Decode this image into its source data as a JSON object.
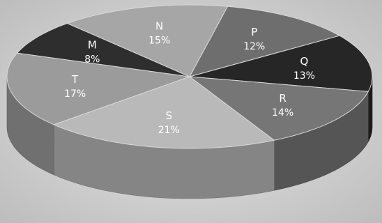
{
  "chart_data": {
    "type": "pie",
    "style": "3d",
    "slices": [
      {
        "label": "P",
        "value": 12,
        "value_text": "12%",
        "color": "#6e6e6e"
      },
      {
        "label": "Q",
        "value": 13,
        "value_text": "13%",
        "color": "#262626"
      },
      {
        "label": "R",
        "value": 14,
        "value_text": "14%",
        "color": "#767676"
      },
      {
        "label": "S",
        "value": 21,
        "value_text": "21%",
        "color": "#b9b9b9"
      },
      {
        "label": "T",
        "value": 17,
        "value_text": "17%",
        "color": "#9b9b9b"
      },
      {
        "label": "M",
        "value": 8,
        "value_text": "8%",
        "color": "#2e2e2e"
      },
      {
        "label": "N",
        "value": 15,
        "value_text": "15%",
        "color": "#a6a6a6"
      }
    ]
  }
}
